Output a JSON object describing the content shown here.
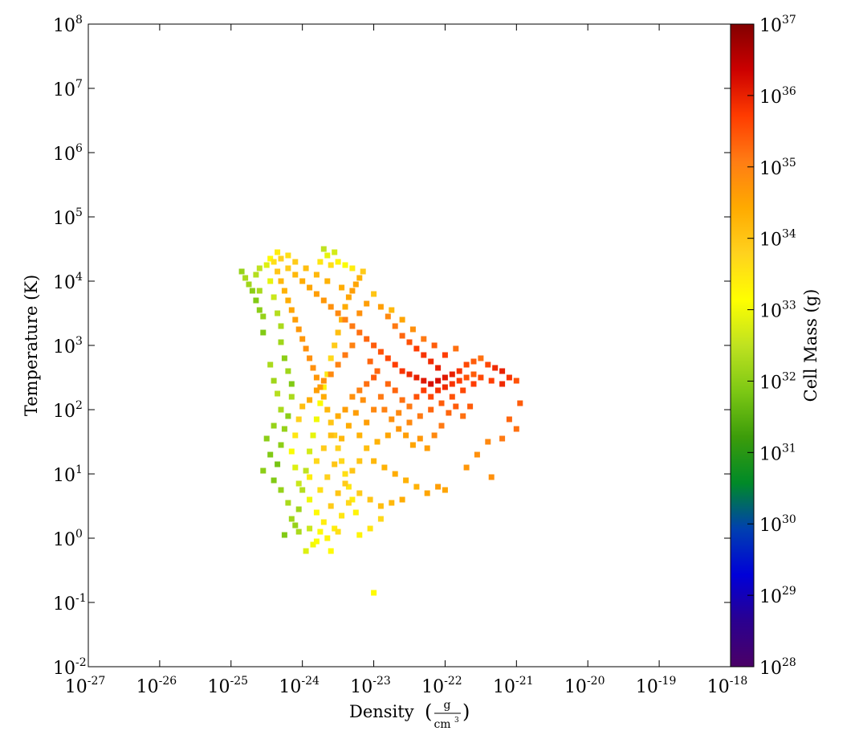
{
  "chart_data": {
    "type": "heatmap",
    "title": "",
    "xlabel": "Density",
    "xlabel_unit_num": "g",
    "xlabel_unit_den": "cm",
    "xlabel_unit_den_exp": "3",
    "ylabel": "Temperature  (K)",
    "colorbar_label": "Cell Mass  (g)",
    "x_scale": "log",
    "y_scale": "log",
    "color_scale": "log",
    "xlim_exp": [
      -27,
      -18
    ],
    "ylim_exp": [
      -2,
      8
    ],
    "clim_exp": [
      28,
      37
    ],
    "x_ticks": [
      {
        "base": "10",
        "exp": "-27"
      },
      {
        "base": "10",
        "exp": "-26"
      },
      {
        "base": "10",
        "exp": "-25"
      },
      {
        "base": "10",
        "exp": "-24"
      },
      {
        "base": "10",
        "exp": "-23"
      },
      {
        "base": "10",
        "exp": "-22"
      },
      {
        "base": "10",
        "exp": "-21"
      },
      {
        "base": "10",
        "exp": "-20"
      },
      {
        "base": "10",
        "exp": "-19"
      },
      {
        "base": "10",
        "exp": "-18"
      }
    ],
    "y_ticks": [
      {
        "base": "10",
        "exp": "-2"
      },
      {
        "base": "10",
        "exp": "-1"
      },
      {
        "base": "10",
        "exp": "0"
      },
      {
        "base": "10",
        "exp": "1"
      },
      {
        "base": "10",
        "exp": "2"
      },
      {
        "base": "10",
        "exp": "3"
      },
      {
        "base": "10",
        "exp": "4"
      },
      {
        "base": "10",
        "exp": "5"
      },
      {
        "base": "10",
        "exp": "6"
      },
      {
        "base": "10",
        "exp": "7"
      },
      {
        "base": "10",
        "exp": "8"
      }
    ],
    "colorbar_ticks": [
      {
        "base": "10",
        "exp": "28"
      },
      {
        "base": "10",
        "exp": "29"
      },
      {
        "base": "10",
        "exp": "30"
      },
      {
        "base": "10",
        "exp": "31"
      },
      {
        "base": "10",
        "exp": "32"
      },
      {
        "base": "10",
        "exp": "33"
      },
      {
        "base": "10",
        "exp": "34"
      },
      {
        "base": "10",
        "exp": "35"
      },
      {
        "base": "10",
        "exp": "36"
      },
      {
        "base": "10",
        "exp": "37"
      }
    ],
    "colormap": [
      "#4b0066",
      "#2a0090",
      "#0000d8",
      "#0040b0",
      "#008a28",
      "#3c9c0a",
      "#7dc814",
      "#bfe220",
      "#ffff00",
      "#ffd21e",
      "#ffaa00",
      "#ff7d14",
      "#ff3c00",
      "#cc0000",
      "#820000"
    ],
    "cells": [
      [
        -24.85,
        4.15,
        32.1
      ],
      [
        -24.8,
        4.05,
        32.3
      ],
      [
        -24.75,
        3.95,
        32.2
      ],
      [
        -24.7,
        3.85,
        32.0
      ],
      [
        -24.65,
        3.7,
        31.9
      ],
      [
        -24.6,
        3.55,
        32.0
      ],
      [
        -24.55,
        3.45,
        32.1
      ],
      [
        -24.55,
        3.2,
        31.9
      ],
      [
        -24.6,
        4.2,
        32.5
      ],
      [
        -24.65,
        4.1,
        32.4
      ],
      [
        -24.6,
        3.85,
        32.3
      ],
      [
        -24.5,
        4.25,
        32.8
      ],
      [
        -24.45,
        4.35,
        33.2
      ],
      [
        -24.45,
        4.0,
        32.9
      ],
      [
        -24.4,
        3.75,
        32.6
      ],
      [
        -24.35,
        3.5,
        32.4
      ],
      [
        -24.3,
        3.3,
        32.3
      ],
      [
        -24.3,
        3.05,
        32.2
      ],
      [
        -24.25,
        2.8,
        32.0
      ],
      [
        -24.2,
        2.6,
        32.2
      ],
      [
        -24.15,
        2.4,
        31.9
      ],
      [
        -24.15,
        2.2,
        32.3
      ],
      [
        -24.2,
        1.9,
        32.0
      ],
      [
        -24.25,
        1.7,
        32.1
      ],
      [
        -24.3,
        1.45,
        32.0
      ],
      [
        -24.35,
        1.15,
        31.8
      ],
      [
        -24.4,
        0.9,
        31.9
      ],
      [
        -24.25,
        0.05,
        31.9
      ],
      [
        -24.1,
        0.2,
        32.1
      ],
      [
        -24.05,
        0.45,
        32.2
      ],
      [
        -24.0,
        0.75,
        32.4
      ],
      [
        -23.95,
        1.05,
        32.5
      ],
      [
        -23.9,
        1.35,
        32.7
      ],
      [
        -23.85,
        1.6,
        32.9
      ],
      [
        -23.8,
        1.85,
        33.0
      ],
      [
        -23.75,
        2.1,
        33.1
      ],
      [
        -23.7,
        2.35,
        33.3
      ],
      [
        -23.65,
        2.55,
        33.5
      ],
      [
        -23.6,
        2.8,
        33.7
      ],
      [
        -23.55,
        3.0,
        33.9
      ],
      [
        -23.5,
        3.2,
        34.1
      ],
      [
        -23.45,
        3.4,
        34.3
      ],
      [
        -23.4,
        3.6,
        34.4
      ],
      [
        -23.35,
        3.75,
        34.5
      ],
      [
        -23.3,
        3.85,
        34.6
      ],
      [
        -23.25,
        3.95,
        34.5
      ],
      [
        -23.2,
        4.05,
        34.3
      ],
      [
        -23.15,
        4.15,
        33.9
      ],
      [
        -24.4,
        4.3,
        33.6
      ],
      [
        -24.35,
        4.15,
        34.0
      ],
      [
        -24.3,
        4.0,
        34.2
      ],
      [
        -24.25,
        3.85,
        34.3
      ],
      [
        -24.2,
        3.7,
        34.4
      ],
      [
        -24.15,
        3.55,
        34.5
      ],
      [
        -24.1,
        3.4,
        34.6
      ],
      [
        -24.05,
        3.25,
        34.7
      ],
      [
        -24.0,
        3.1,
        34.7
      ],
      [
        -23.95,
        2.95,
        34.8
      ],
      [
        -23.9,
        2.8,
        34.8
      ],
      [
        -23.85,
        2.65,
        34.8
      ],
      [
        -23.8,
        2.5,
        34.7
      ],
      [
        -23.75,
        2.35,
        34.6
      ],
      [
        -23.7,
        2.2,
        34.4
      ],
      [
        -23.65,
        2.0,
        34.2
      ],
      [
        -23.6,
        1.8,
        34.0
      ],
      [
        -23.55,
        1.6,
        33.9
      ],
      [
        -23.5,
        1.4,
        33.8
      ],
      [
        -23.45,
        1.2,
        33.7
      ],
      [
        -23.4,
        1.0,
        33.6
      ],
      [
        -23.35,
        0.8,
        33.5
      ],
      [
        -23.3,
        0.6,
        33.4
      ],
      [
        -23.25,
        0.4,
        33.3
      ],
      [
        -24.2,
        4.2,
        33.9
      ],
      [
        -24.1,
        4.1,
        34.2
      ],
      [
        -24.0,
        4.0,
        34.4
      ],
      [
        -23.9,
        3.9,
        34.5
      ],
      [
        -23.8,
        3.8,
        34.6
      ],
      [
        -23.7,
        3.7,
        34.7
      ],
      [
        -23.6,
        3.6,
        34.8
      ],
      [
        -23.5,
        3.5,
        34.9
      ],
      [
        -23.4,
        3.4,
        35.0
      ],
      [
        -23.3,
        3.3,
        35.1
      ],
      [
        -23.2,
        3.2,
        35.2
      ],
      [
        -23.1,
        3.1,
        35.3
      ],
      [
        -23.0,
        3.0,
        35.4
      ],
      [
        -22.9,
        2.9,
        35.5
      ],
      [
        -22.8,
        2.8,
        35.6
      ],
      [
        -22.7,
        2.7,
        35.7
      ],
      [
        -22.6,
        2.6,
        35.8
      ],
      [
        -22.5,
        2.55,
        35.9
      ],
      [
        -22.4,
        2.5,
        36.0
      ],
      [
        -22.3,
        2.45,
        36.1
      ],
      [
        -22.2,
        2.4,
        36.2
      ],
      [
        -22.1,
        2.45,
        36.2
      ],
      [
        -22.0,
        2.5,
        36.1
      ],
      [
        -21.9,
        2.55,
        36.0
      ],
      [
        -21.8,
        2.6,
        35.8
      ],
      [
        -21.7,
        2.7,
        35.6
      ],
      [
        -21.6,
        2.75,
        35.4
      ],
      [
        -21.5,
        2.8,
        35.2
      ],
      [
        -21.4,
        2.7,
        35.6
      ],
      [
        -21.3,
        2.65,
        35.9
      ],
      [
        -21.2,
        2.6,
        36.0
      ],
      [
        -21.1,
        2.5,
        35.8
      ],
      [
        -21.0,
        2.45,
        35.5
      ],
      [
        -21.2,
        2.4,
        35.9
      ],
      [
        -21.35,
        2.45,
        35.7
      ],
      [
        -21.5,
        2.5,
        35.6
      ],
      [
        -21.6,
        2.4,
        35.7
      ],
      [
        -21.75,
        2.3,
        35.6
      ],
      [
        -21.9,
        2.2,
        35.5
      ],
      [
        -22.05,
        2.1,
        35.4
      ],
      [
        -22.2,
        2.0,
        35.3
      ],
      [
        -22.35,
        1.9,
        35.1
      ],
      [
        -22.5,
        1.8,
        34.9
      ],
      [
        -22.65,
        1.7,
        34.7
      ],
      [
        -22.8,
        1.6,
        34.5
      ],
      [
        -22.95,
        1.5,
        34.3
      ],
      [
        -23.1,
        1.4,
        34.1
      ],
      [
        -23.2,
        1.2,
        34.0
      ],
      [
        -23.0,
        1.2,
        34.2
      ],
      [
        -22.85,
        1.1,
        34.3
      ],
      [
        -22.7,
        1.0,
        34.4
      ],
      [
        -22.55,
        0.9,
        34.3
      ],
      [
        -22.4,
        0.8,
        34.3
      ],
      [
        -22.25,
        0.7,
        34.5
      ],
      [
        -22.1,
        0.8,
        34.6
      ],
      [
        -22.0,
        0.75,
        34.5
      ],
      [
        -22.6,
        0.6,
        34.4
      ],
      [
        -22.75,
        0.55,
        34.2
      ],
      [
        -22.9,
        0.5,
        34.1
      ],
      [
        -23.05,
        0.6,
        34.0
      ],
      [
        -23.2,
        0.7,
        33.9
      ],
      [
        -23.35,
        0.55,
        33.7
      ],
      [
        -23.45,
        0.35,
        33.5
      ],
      [
        -23.55,
        0.15,
        33.4
      ],
      [
        -23.65,
        0.0,
        33.3
      ],
      [
        -23.5,
        0.1,
        33.6
      ],
      [
        -23.2,
        0.05,
        33.3
      ],
      [
        -23.05,
        0.15,
        33.5
      ],
      [
        -22.9,
        0.3,
        33.7
      ],
      [
        -23.6,
        -0.2,
        33.2
      ],
      [
        -23.85,
        -0.1,
        33.0
      ],
      [
        -23.0,
        -0.85,
        33.2
      ],
      [
        -21.7,
        1.1,
        34.7
      ],
      [
        -21.55,
        1.3,
        34.8
      ],
      [
        -21.4,
        1.5,
        34.9
      ],
      [
        -21.35,
        0.95,
        34.8
      ],
      [
        -21.2,
        1.55,
        35.1
      ],
      [
        -21.1,
        1.85,
        35.3
      ],
      [
        -20.95,
        2.1,
        35.4
      ],
      [
        -21.0,
        1.7,
        35.2
      ],
      [
        -22.9,
        3.6,
        34.6
      ],
      [
        -22.8,
        3.45,
        34.9
      ],
      [
        -22.7,
        3.3,
        35.1
      ],
      [
        -22.6,
        3.15,
        35.3
      ],
      [
        -22.5,
        3.05,
        35.5
      ],
      [
        -22.4,
        2.95,
        35.7
      ],
      [
        -22.3,
        2.85,
        35.8
      ],
      [
        -22.2,
        2.75,
        35.9
      ],
      [
        -22.1,
        2.65,
        36.0
      ],
      [
        -22.0,
        2.85,
        35.7
      ],
      [
        -21.85,
        2.95,
        35.2
      ],
      [
        -22.15,
        3.0,
        35.4
      ],
      [
        -22.3,
        3.1,
        35.1
      ],
      [
        -22.45,
        3.25,
        34.8
      ],
      [
        -22.6,
        3.4,
        34.5
      ],
      [
        -22.75,
        3.55,
        34.2
      ],
      [
        -23.0,
        3.8,
        34.0
      ],
      [
        -23.1,
        3.65,
        34.6
      ],
      [
        -23.2,
        3.5,
        34.8
      ],
      [
        -23.3,
        3.0,
        35.0
      ],
      [
        -23.4,
        2.85,
        35.1
      ],
      [
        -23.5,
        2.7,
        35.0
      ],
      [
        -23.6,
        2.55,
        34.9
      ],
      [
        -23.7,
        2.45,
        34.8
      ],
      [
        -23.8,
        2.3,
        34.6
      ],
      [
        -23.9,
        2.15,
        34.4
      ],
      [
        -24.0,
        2.05,
        34.1
      ],
      [
        -24.05,
        1.85,
        33.8
      ],
      [
        -24.1,
        1.6,
        33.5
      ],
      [
        -24.15,
        1.35,
        33.1
      ],
      [
        -24.1,
        1.1,
        32.8
      ],
      [
        -24.05,
        0.85,
        32.6
      ],
      [
        -23.9,
        0.6,
        33.0
      ],
      [
        -23.8,
        0.4,
        33.2
      ],
      [
        -23.7,
        0.25,
        33.4
      ],
      [
        -23.6,
        0.5,
        33.9
      ],
      [
        -23.5,
        0.7,
        34.0
      ],
      [
        -23.4,
        0.85,
        33.9
      ],
      [
        -23.3,
        1.05,
        34.0
      ],
      [
        -23.2,
        1.6,
        34.3
      ],
      [
        -23.1,
        1.8,
        34.6
      ],
      [
        -23.0,
        2.0,
        34.9
      ],
      [
        -22.9,
        2.2,
        35.1
      ],
      [
        -22.8,
        2.4,
        35.3
      ],
      [
        -22.7,
        2.3,
        35.3
      ],
      [
        -22.6,
        2.15,
        35.2
      ],
      [
        -22.5,
        2.05,
        35.1
      ],
      [
        -22.4,
        2.2,
        35.5
      ],
      [
        -22.3,
        2.3,
        35.7
      ],
      [
        -22.2,
        2.2,
        35.6
      ],
      [
        -22.1,
        2.3,
        35.8
      ],
      [
        -22.0,
        2.35,
        35.9
      ],
      [
        -21.9,
        2.4,
        35.8
      ],
      [
        -21.8,
        2.45,
        35.7
      ],
      [
        -21.7,
        2.5,
        35.5
      ],
      [
        -21.6,
        2.55,
        35.4
      ],
      [
        -23.0,
        2.5,
        35.4
      ],
      [
        -23.1,
        2.4,
        35.2
      ],
      [
        -23.2,
        2.3,
        35.0
      ],
      [
        -23.3,
        2.2,
        34.8
      ],
      [
        -23.4,
        2.0,
        34.6
      ],
      [
        -23.5,
        1.9,
        34.4
      ],
      [
        -23.6,
        1.6,
        34.1
      ],
      [
        -23.7,
        1.4,
        33.9
      ],
      [
        -23.8,
        1.2,
        33.7
      ],
      [
        -23.9,
        0.95,
        33.4
      ],
      [
        -23.75,
        0.75,
        33.6
      ],
      [
        -23.65,
        0.95,
        33.8
      ],
      [
        -23.55,
        1.15,
        34.0
      ],
      [
        -23.45,
        1.55,
        34.2
      ],
      [
        -23.35,
        1.75,
        34.4
      ],
      [
        -23.25,
        1.95,
        34.6
      ],
      [
        -23.15,
        2.15,
        34.8
      ],
      [
        -23.05,
        2.75,
        35.3
      ],
      [
        -22.95,
        2.6,
        35.3
      ],
      [
        -22.85,
        2.0,
        35.0
      ],
      [
        -22.75,
        1.85,
        34.8
      ],
      [
        -22.65,
        1.95,
        34.9
      ],
      [
        -22.55,
        1.6,
        34.6
      ],
      [
        -22.45,
        1.45,
        34.5
      ],
      [
        -22.35,
        1.55,
        34.7
      ],
      [
        -22.25,
        1.4,
        34.6
      ],
      [
        -22.15,
        1.6,
        34.9
      ],
      [
        -22.05,
        1.75,
        35.1
      ],
      [
        -21.95,
        1.95,
        35.3
      ],
      [
        -21.85,
        2.05,
        35.4
      ],
      [
        -21.75,
        1.9,
        35.2
      ],
      [
        -21.65,
        2.05,
        35.4
      ],
      [
        -24.35,
        4.45,
        33.4
      ],
      [
        -24.3,
        4.35,
        33.8
      ],
      [
        -24.2,
        4.4,
        33.6
      ],
      [
        -24.1,
        4.3,
        33.9
      ],
      [
        -23.95,
        4.2,
        34.1
      ],
      [
        -23.8,
        4.1,
        34.2
      ],
      [
        -23.65,
        4.0,
        34.3
      ],
      [
        -23.45,
        3.9,
        34.4
      ],
      [
        -23.65,
        4.4,
        32.9
      ],
      [
        -23.55,
        4.45,
        32.7
      ],
      [
        -23.7,
        4.5,
        32.5
      ],
      [
        -23.5,
        4.3,
        33.3
      ],
      [
        -23.4,
        4.25,
        33.1
      ],
      [
        -23.3,
        4.2,
        33.4
      ],
      [
        -23.6,
        4.25,
        33.6
      ],
      [
        -23.75,
        4.3,
        33.5
      ],
      [
        -24.45,
        2.7,
        32.3
      ],
      [
        -24.4,
        2.45,
        32.2
      ],
      [
        -24.35,
        2.25,
        32.4
      ],
      [
        -24.3,
        2.0,
        32.3
      ],
      [
        -24.4,
        1.75,
        32.1
      ],
      [
        -24.5,
        1.55,
        32.0
      ],
      [
        -24.45,
        1.3,
        31.9
      ],
      [
        -24.55,
        1.05,
        32.0
      ],
      [
        -24.3,
        0.75,
        32.1
      ],
      [
        -24.2,
        0.55,
        32.3
      ],
      [
        -24.15,
        0.3,
        32.2
      ],
      [
        -24.05,
        0.1,
        32.3
      ],
      [
        -23.95,
        -0.2,
        32.8
      ],
      [
        -23.9,
        0.15,
        32.6
      ],
      [
        -23.8,
        -0.05,
        33.1
      ],
      [
        -23.75,
        0.1,
        33.2
      ]
    ]
  }
}
